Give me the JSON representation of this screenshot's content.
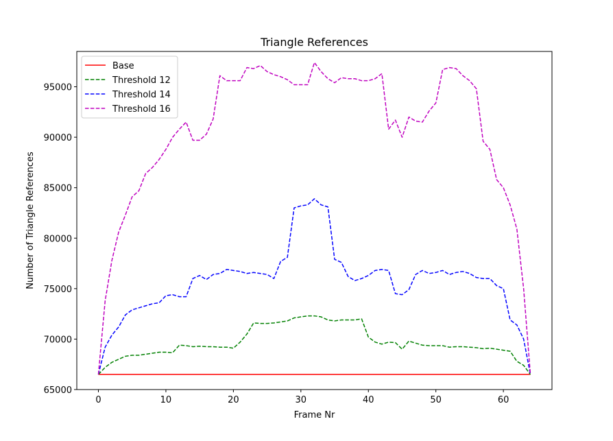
{
  "chart_data": {
    "type": "line",
    "title": "Triangle References",
    "xlabel": "Frame Nr",
    "ylabel": "Number of Triangle References",
    "xlim": [
      -3.2,
      67.2
    ],
    "ylim": [
      65000,
      98500
    ],
    "xticks": [
      0,
      10,
      20,
      30,
      40,
      50,
      60
    ],
    "yticks": [
      65000,
      70000,
      75000,
      80000,
      85000,
      90000,
      95000
    ],
    "grid": false,
    "legend_position": "top-left",
    "x": [
      0,
      1,
      2,
      3,
      4,
      5,
      6,
      7,
      8,
      9,
      10,
      11,
      12,
      13,
      14,
      15,
      16,
      17,
      18,
      19,
      20,
      21,
      22,
      23,
      24,
      25,
      26,
      27,
      28,
      29,
      30,
      31,
      32,
      33,
      34,
      35,
      36,
      37,
      38,
      39,
      40,
      41,
      42,
      43,
      44,
      45,
      46,
      47,
      48,
      49,
      50,
      51,
      52,
      53,
      54,
      55,
      56,
      57,
      58,
      59,
      60,
      61,
      62,
      63,
      64
    ],
    "series": [
      {
        "name": "Base",
        "color": "#ff0000",
        "dash": "solid",
        "values": [
          66500,
          66500,
          66500,
          66500,
          66500,
          66500,
          66500,
          66500,
          66500,
          66500,
          66500,
          66500,
          66500,
          66500,
          66500,
          66500,
          66500,
          66500,
          66500,
          66500,
          66500,
          66500,
          66500,
          66500,
          66500,
          66500,
          66500,
          66500,
          66500,
          66500,
          66500,
          66500,
          66500,
          66500,
          66500,
          66500,
          66500,
          66500,
          66500,
          66500,
          66500,
          66500,
          66500,
          66500,
          66500,
          66500,
          66500,
          66500,
          66500,
          66500,
          66500,
          66500,
          66500,
          66500,
          66500,
          66500,
          66500,
          66500,
          66500,
          66500,
          66500,
          66500,
          66500,
          66500,
          66500
        ]
      },
      {
        "name": "Threshold 12",
        "color": "#008000",
        "dash": "dashed",
        "values": [
          66500,
          67200,
          67700,
          68000,
          68300,
          68400,
          68400,
          68500,
          68600,
          68700,
          68700,
          68650,
          69400,
          69350,
          69250,
          69300,
          69250,
          69250,
          69200,
          69200,
          69100,
          69700,
          70500,
          71600,
          71550,
          71550,
          71600,
          71700,
          71800,
          72100,
          72200,
          72300,
          72300,
          72200,
          71900,
          71800,
          71900,
          71900,
          71900,
          72000,
          70200,
          69700,
          69500,
          69700,
          69650,
          69000,
          69800,
          69600,
          69400,
          69350,
          69350,
          69350,
          69200,
          69250,
          69250,
          69200,
          69150,
          69050,
          69100,
          69000,
          68900,
          68800,
          67800,
          67400,
          66500
        ]
      },
      {
        "name": "Threshold 14",
        "color": "#0000ff",
        "dash": "dashed",
        "values": [
          66500,
          69200,
          70400,
          71200,
          72400,
          72900,
          73100,
          73300,
          73500,
          73600,
          74300,
          74400,
          74200,
          74200,
          76000,
          76300,
          75900,
          76400,
          76500,
          76900,
          76800,
          76700,
          76500,
          76600,
          76500,
          76400,
          76000,
          77700,
          78100,
          83000,
          83200,
          83300,
          83900,
          83300,
          83100,
          77900,
          77600,
          76200,
          75800,
          76000,
          76300,
          76800,
          76900,
          76800,
          74500,
          74400,
          74900,
          76400,
          76800,
          76500,
          76600,
          76800,
          76400,
          76600,
          76700,
          76500,
          76100,
          76000,
          76000,
          75300,
          75000,
          71900,
          71400,
          70000,
          66500
        ]
      },
      {
        "name": "Threshold 16",
        "color": "#bf00bf",
        "dash": "dashed",
        "values": [
          66500,
          73800,
          77800,
          80600,
          82300,
          84100,
          84700,
          86400,
          87000,
          87800,
          88800,
          90000,
          90800,
          91500,
          89700,
          89700,
          90300,
          91800,
          96100,
          95600,
          95600,
          95600,
          96900,
          96800,
          97100,
          96500,
          96200,
          96000,
          95700,
          95200,
          95200,
          95200,
          97400,
          96500,
          95800,
          95400,
          95900,
          95800,
          95800,
          95600,
          95600,
          95800,
          96300,
          90800,
          91700,
          90000,
          92000,
          91600,
          91500,
          92600,
          93400,
          96700,
          96900,
          96800,
          96100,
          95600,
          94800,
          89600,
          88800,
          85800,
          85000,
          83300,
          80900,
          75000,
          66500
        ]
      }
    ]
  }
}
